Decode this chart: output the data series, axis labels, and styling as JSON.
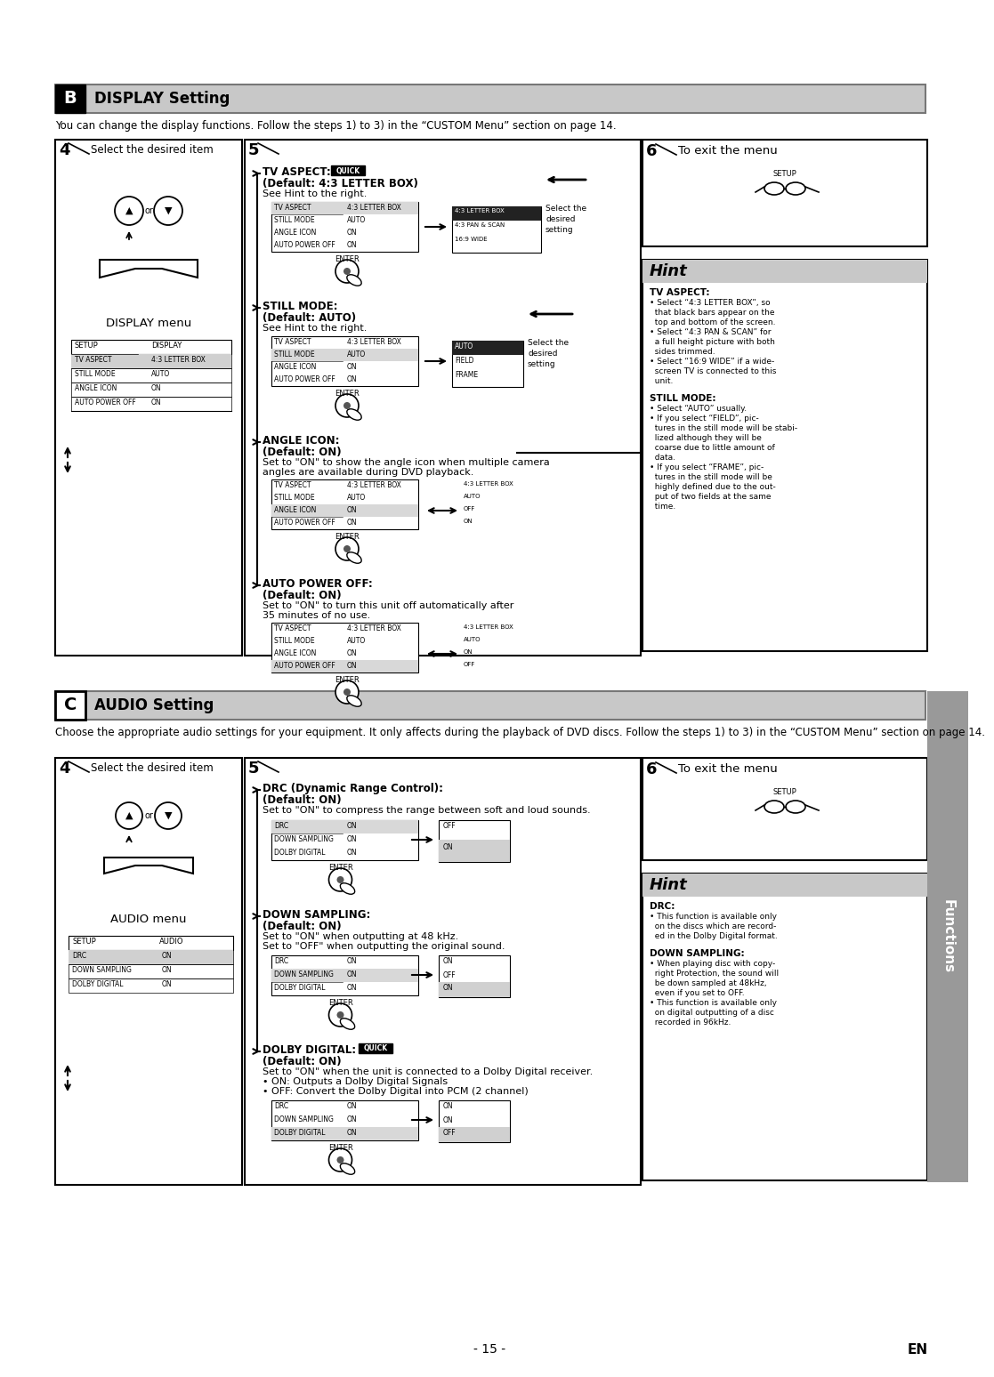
{
  "title_b": "DISPLAY Setting",
  "title_c": "AUDIO Setting",
  "bg_color": "#ffffff",
  "section_header_bg": "#c8c8c8",
  "display_intro": "You can change the display functions. Follow the steps 1) to 3) in the “CUSTOM Menu” section on page 14.",
  "audio_intro": "Choose the appropriate audio settings for your equipment. It only affects during the playback of DVD discs. Follow the steps 1) to 3) in the “CUSTOM Menu” section on page 14.",
  "functions_label": "Functions",
  "page_number": "- 15 -",
  "en_label": "EN"
}
